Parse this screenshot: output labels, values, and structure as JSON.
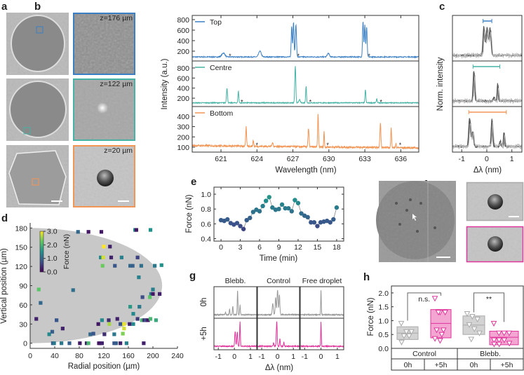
{
  "panel_labels": {
    "a": "a",
    "b": "b",
    "c": "c",
    "d": "d",
    "e": "e",
    "f": "f",
    "g": "g",
    "h": "h"
  },
  "panel_a": {
    "depth_labels": [
      "z=176 µm",
      "z=122 µm",
      "z=20 µm"
    ],
    "frame_colors": [
      "#3a7fc4",
      "#45b3a5",
      "#f39555"
    ]
  },
  "panel_f": {
    "frame_colors": [
      "#aaaaaa",
      "#e0359b"
    ]
  },
  "chart_data": [
    {
      "panel": "b",
      "type": "line",
      "xlabel": "Wavelength (nm)",
      "ylabel": "Intensity (a.u.)",
      "xlim": [
        618.6,
        637.5
      ],
      "xticks": [
        "621",
        "624",
        "627",
        "630",
        "633",
        "636"
      ],
      "series": [
        {
          "name": "Top",
          "color": "#3a7fc4",
          "ylim": [
            13,
            880
          ],
          "yticks": [
            "200",
            "400",
            "600",
            "800"
          ],
          "baseline": 90,
          "peaks": [
            [
              621.2,
              165,
              0.18
            ],
            [
              624.25,
              200,
              0.15
            ],
            [
              626.9,
              670,
              0.06
            ],
            [
              627.05,
              750,
              0.06
            ],
            [
              627.25,
              700,
              0.07
            ],
            [
              629.95,
              160,
              0.12
            ],
            [
              632.85,
              770,
              0.06
            ],
            [
              633.0,
              700,
              0.06
            ],
            [
              633.15,
              660,
              0.06
            ]
          ],
          "asterisks": [
            621.75,
            627.45,
            633.35
          ],
          "asterisk_faint": [
            true,
            false,
            false
          ]
        },
        {
          "name": "Centre",
          "color": "#45b3a5",
          "ylim": [
            34,
            939
          ],
          "yticks": [
            "200",
            "400",
            "600",
            "800"
          ],
          "baseline": 108,
          "peaks": [
            [
              621.5,
              400,
              0.06
            ],
            [
              622.45,
              340,
              0.05
            ],
            [
              627.2,
              830,
              0.06
            ],
            [
              627.55,
              170,
              0.08
            ],
            [
              628.1,
              440,
              0.05
            ],
            [
              633.05,
              370,
              0.05
            ],
            [
              634.0,
              190,
              0.05
            ]
          ],
          "asterisks": [
            622.75,
            628.45,
            634.35
          ],
          "asterisk_faint": [
            true,
            false,
            false
          ]
        },
        {
          "name": "Bottom",
          "color": "#f39555",
          "ylim": [
            52,
            495
          ],
          "yticks": [
            "100",
            "200",
            "300",
            "400"
          ],
          "baseline": 115,
          "peaks": [
            [
              623.1,
              300,
              0.05
            ],
            [
              623.7,
              170,
              0.05
            ],
            [
              625.3,
              150,
              0.07
            ],
            [
              628.3,
              290,
              0.06
            ],
            [
              629.1,
              430,
              0.05
            ],
            [
              629.6,
              265,
              0.04
            ],
            [
              634.3,
              350,
              0.06
            ],
            [
              635.2,
              305,
              0.05
            ],
            [
              635.6,
              160,
              0.04
            ]
          ],
          "asterisks": [
            624.0,
            629.9,
            635.95
          ],
          "asterisk_faint": [
            true,
            false,
            false
          ]
        }
      ]
    },
    {
      "panel": "c",
      "type": "line",
      "xlabel": "Δλ (nm)",
      "ylabel": "Norm. intensity",
      "xlim": [
        -1.37,
        1.4
      ],
      "xticks": [
        "-1",
        "0",
        "1"
      ],
      "subplots": [
        {
          "peaks": [
            [
              -0.1,
              0.95,
              0.05
            ],
            [
              0.03,
              0.92,
              0.06
            ],
            [
              0.15,
              0.9,
              0.05
            ]
          ],
          "range_bar": [
            -0.15,
            0.2
          ],
          "color": "#3a7fc4"
        },
        {
          "peaks": [
            [
              -0.5,
              1.0,
              0.04
            ],
            [
              0.3,
              0.12,
              0.04
            ],
            [
              0.45,
              0.6,
              0.03
            ]
          ],
          "range_bar": [
            -0.55,
            0.52
          ],
          "color": "#45b3a5"
        },
        {
          "peaks": [
            [
              -0.67,
              0.95,
              0.05
            ],
            [
              -0.55,
              0.5,
              0.05
            ],
            [
              0.22,
              0.92,
              0.04
            ],
            [
              0.55,
              0.2,
              0.03
            ],
            [
              0.7,
              0.5,
              0.03
            ]
          ],
          "range_bar": [
            -0.72,
            0.78
          ],
          "color": "#f39555"
        }
      ]
    },
    {
      "panel": "d",
      "type": "scatter",
      "xlabel": "Radial position (µm)",
      "ylabel": "Vertical position (µm)",
      "xlim": [
        0,
        240
      ],
      "ylim": [
        -8,
        188
      ],
      "xticks": [
        "0",
        "40",
        "80",
        "120",
        "160",
        "200",
        "240"
      ],
      "yticks": [
        "0",
        "30",
        "60",
        "90",
        "120",
        "150",
        "180"
      ],
      "colorbar": {
        "label": "Force (nN)",
        "ticks": [
          "0.0",
          "1.0",
          "2.0",
          "3.0"
        ],
        "range": [
          0,
          3
        ]
      },
      "droplet_outline": {
        "rx": 215,
        "ry": 90,
        "cy": 90
      },
      "points": [
        [
          78,
          174,
          1.0
        ],
        [
          95,
          174,
          0.2
        ],
        [
          116,
          174,
          0.2
        ],
        [
          171,
          177,
          1.5
        ],
        [
          173,
          177,
          0.2
        ],
        [
          196,
          177,
          1.5
        ],
        [
          120,
          151,
          3.0
        ],
        [
          130,
          151,
          0.3
        ],
        [
          115,
          134,
          1.4
        ],
        [
          119,
          134,
          2.8
        ],
        [
          132,
          134,
          0.3
        ],
        [
          149,
          134,
          1.3
        ],
        [
          175,
          134,
          0.6
        ],
        [
          118,
          121,
          2.3
        ],
        [
          138,
          121,
          0.8
        ],
        [
          163,
          121,
          1.0
        ],
        [
          167,
          121,
          0.9
        ],
        [
          181,
          121,
          1.1
        ],
        [
          203,
          121,
          1.2
        ],
        [
          214,
          122,
          1.5
        ],
        [
          177,
          103,
          1.3
        ],
        [
          14,
          84,
          2.2
        ],
        [
          70,
          83,
          1.1
        ],
        [
          200,
          84,
          1.3
        ],
        [
          197,
          77,
          1.2
        ],
        [
          200,
          77,
          0.2
        ],
        [
          211,
          77,
          0.3
        ],
        [
          183,
          72,
          0.7
        ],
        [
          195,
          72,
          2.2
        ],
        [
          17,
          63,
          1.0
        ],
        [
          163,
          57,
          1.6
        ],
        [
          178,
          57,
          1.2
        ],
        [
          168,
          46,
          1.4
        ],
        [
          10,
          38,
          0.3
        ],
        [
          43,
          36,
          0.8
        ],
        [
          117,
          36,
          1.4
        ],
        [
          128,
          36,
          0.4
        ],
        [
          142,
          38,
          0.3
        ],
        [
          175,
          38,
          0.5
        ],
        [
          182,
          36,
          2.0
        ],
        [
          186,
          36,
          0.3
        ],
        [
          188,
          36,
          0.7
        ],
        [
          192,
          36,
          0.2
        ],
        [
          196,
          38,
          2.0
        ],
        [
          205,
          36,
          1.8
        ],
        [
          111,
          30,
          0.2
        ],
        [
          129,
          30,
          2.6
        ],
        [
          147,
          30,
          0.8
        ],
        [
          153,
          30,
          2.9
        ],
        [
          162,
          30,
          0.3
        ],
        [
          168,
          30,
          1.4
        ],
        [
          153,
          23,
          2.8
        ],
        [
          53,
          23,
          0.3
        ],
        [
          31,
          14,
          1.4
        ],
        [
          36,
          18,
          0.9
        ],
        [
          98,
          14,
          1.0
        ],
        [
          103,
          15,
          0.8
        ],
        [
          121,
          14,
          0.4
        ],
        [
          137,
          14,
          1.2
        ],
        [
          151,
          15,
          2.4
        ],
        [
          37,
          0,
          0.8
        ],
        [
          39,
          0,
          1.2
        ],
        [
          51,
          0,
          1.2
        ],
        [
          64,
          0,
          0.9
        ],
        [
          81,
          0,
          0.2
        ],
        [
          92,
          0,
          0.3
        ],
        [
          95,
          0,
          2.0
        ],
        [
          112,
          0,
          0.2
        ],
        [
          114,
          0,
          0.2
        ],
        [
          117,
          0,
          0.3
        ],
        [
          137,
          0,
          0.8
        ],
        [
          140,
          0,
          0.9
        ],
        [
          147,
          0,
          0.3
        ],
        [
          157,
          0,
          1.3
        ],
        [
          185,
          0,
          0.3
        ]
      ]
    },
    {
      "panel": "e",
      "type": "line",
      "xlabel": "Time (min)",
      "ylabel": "Force (nN)",
      "xlim": [
        -1.1,
        19.1
      ],
      "ylim": [
        0.367,
        1.095
      ],
      "xticks": [
        "0",
        "3",
        "6",
        "9",
        "12",
        "15",
        "18"
      ],
      "yticks": [
        "0.4",
        "0.6",
        "0.8",
        "1.0"
      ],
      "x": [
        0,
        0.5,
        1,
        1.5,
        2,
        2.5,
        3,
        3.5,
        4,
        4.5,
        5,
        5.5,
        6,
        6.5,
        7,
        7.5,
        8,
        8.5,
        9,
        9.5,
        10,
        10.5,
        11,
        11.5,
        12,
        12.5,
        13,
        13.5,
        14,
        14.5,
        15,
        15.5,
        16,
        16.5,
        17,
        17.5,
        18
      ],
      "y": [
        0.65,
        0.64,
        0.66,
        0.61,
        0.59,
        0.61,
        0.57,
        0.53,
        0.65,
        0.68,
        0.76,
        0.79,
        0.77,
        0.84,
        0.91,
        0.96,
        0.82,
        0.79,
        0.8,
        0.86,
        0.81,
        0.81,
        0.77,
        0.92,
        0.88,
        0.74,
        0.71,
        0.69,
        0.62,
        0.62,
        0.57,
        0.62,
        0.63,
        0.64,
        0.62,
        0.66,
        0.82
      ]
    },
    {
      "panel": "g",
      "type": "line",
      "xlabel": "Δλ (nm)",
      "xlim": [
        -1.27,
        1.39
      ],
      "xticks": [
        "-1",
        "0",
        "1"
      ],
      "columns": [
        "Blebb.",
        "Control",
        "Free droplet"
      ],
      "rows": [
        {
          "label": "0h",
          "color": "#999999"
        },
        {
          "label": "+5h",
          "color": "#e0359b"
        }
      ],
      "curves": [
        [
          [
            [
              -0.55,
              0.1,
              0.03
            ],
            [
              -0.3,
              0.22,
              0.03
            ],
            [
              -0.1,
              0.35,
              0.03
            ],
            [
              0.2,
              1.0,
              0.03
            ],
            [
              0.35,
              0.4,
              0.03
            ]
          ],
          [
            [
              -0.3,
              0.45,
              0.05
            ],
            [
              -0.12,
              0.7,
              0.04
            ],
            [
              0.0,
              1.0,
              0.05
            ],
            [
              0.12,
              0.8,
              0.04
            ]
          ],
          [
            [
              0.0,
              1.0,
              0.025
            ]
          ]
        ],
        [
          [
            [
              0.05,
              0.6,
              0.04
            ],
            [
              0.18,
              0.58,
              0.04
            ],
            [
              0.35,
              1.0,
              0.03
            ]
          ],
          [
            [
              -0.25,
              0.15,
              0.03
            ],
            [
              -0.05,
              1.0,
              0.04
            ],
            [
              0.15,
              0.3,
              0.03
            ],
            [
              0.4,
              0.18,
              0.03
            ]
          ],
          [
            [
              0.0,
              1.0,
              0.025
            ]
          ]
        ]
      ]
    },
    {
      "panel": "h",
      "type": "box",
      "ylabel": "Force (nN)",
      "ylim": [
        0,
        2.25
      ],
      "yticks": [
        "0.0",
        "0.5",
        "1.0",
        "1.5",
        "2.0"
      ],
      "groups": [
        "Control",
        "Blebb."
      ],
      "conditions": [
        "0h",
        "+5h",
        "0h",
        "+5h"
      ],
      "boxes": [
        {
          "q1": 0.32,
          "median": 0.55,
          "q3": 0.78,
          "color": "#aaaaaa",
          "fill": "#d3d3d3",
          "points": [
            0.9,
            0.6,
            0.6,
            0.45,
            0.45,
            0.22
          ]
        },
        {
          "q1": 0.38,
          "median": 0.9,
          "q3": 1.4,
          "color": "#e0359b",
          "fill": "#f3a6d2",
          "points": [
            1.8,
            1.3,
            1.3,
            1.3,
            0.66,
            0.66,
            0.5,
            0.35,
            0.28
          ]
        },
        {
          "q1": 0.5,
          "median": 0.84,
          "q3": 1.17,
          "color": "#aaaaaa",
          "fill": "#d3d3d3",
          "points": [
            1.25,
            1.15,
            1.05,
            0.85,
            0.7,
            0.55,
            0.33
          ]
        },
        {
          "q1": 0.13,
          "median": 0.4,
          "q3": 0.62,
          "color": "#e0359b",
          "fill": "#f3a6d2",
          "points": [
            0.9,
            0.55,
            0.55,
            0.55,
            0.3,
            0.3,
            0.3,
            0.18,
            0.15,
            0.15
          ]
        }
      ],
      "significance": [
        {
          "label": "n.s.",
          "pair": [
            0,
            1
          ]
        },
        {
          "label": "**",
          "pair": [
            2,
            3
          ]
        }
      ]
    }
  ]
}
